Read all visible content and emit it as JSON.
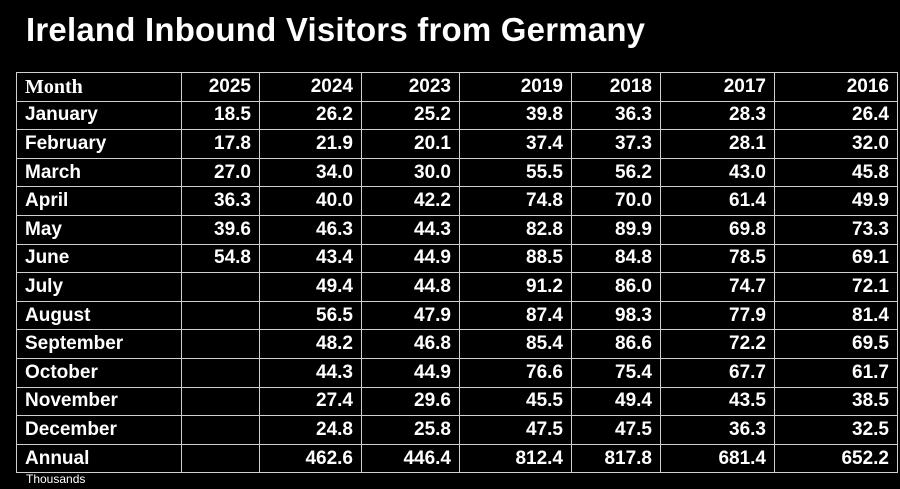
{
  "title": "Ireland Inbound Visitors from Germany",
  "table": {
    "headers": [
      "Month",
      "2025",
      "2024",
      "2023",
      "2019",
      "2018",
      "2017",
      "2016"
    ],
    "rows": [
      [
        "January",
        "18.5",
        "26.2",
        "25.2",
        "39.8",
        "36.3",
        "28.3",
        "26.4"
      ],
      [
        "February",
        "17.8",
        "21.9",
        "20.1",
        "37.4",
        "37.3",
        "28.1",
        "32.0"
      ],
      [
        "March",
        "27.0",
        "34.0",
        "30.0",
        "55.5",
        "56.2",
        "43.0",
        "45.8"
      ],
      [
        "April",
        "36.3",
        "40.0",
        "42.2",
        "74.8",
        "70.0",
        "61.4",
        "49.9"
      ],
      [
        "May",
        "39.6",
        "46.3",
        "44.3",
        "82.8",
        "89.9",
        "69.8",
        "73.3"
      ],
      [
        "June",
        "54.8",
        "43.4",
        "44.9",
        "88.5",
        "84.8",
        "78.5",
        "69.1"
      ],
      [
        "July",
        "",
        "49.4",
        "44.8",
        "91.2",
        "86.0",
        "74.7",
        "72.1"
      ],
      [
        "August",
        "",
        "56.5",
        "47.9",
        "87.4",
        "98.3",
        "77.9",
        "81.4"
      ],
      [
        "September",
        "",
        "48.2",
        "46.8",
        "85.4",
        "86.6",
        "72.2",
        "69.5"
      ],
      [
        "October",
        "",
        "44.3",
        "44.9",
        "76.6",
        "75.4",
        "67.7",
        "61.7"
      ],
      [
        "November",
        "",
        "27.4",
        "29.6",
        "45.5",
        "49.4",
        "43.5",
        "38.5"
      ],
      [
        "December",
        "",
        "24.8",
        "25.8",
        "47.5",
        "47.5",
        "36.3",
        "32.5"
      ],
      [
        "Annual",
        "",
        "462.6",
        "446.4",
        "812.4",
        "817.8",
        "681.4",
        "652.2"
      ]
    ]
  },
  "note": "Thousands",
  "colors": {
    "background": "#000000",
    "text": "#ffffff",
    "grid": "#cfcfcf"
  }
}
